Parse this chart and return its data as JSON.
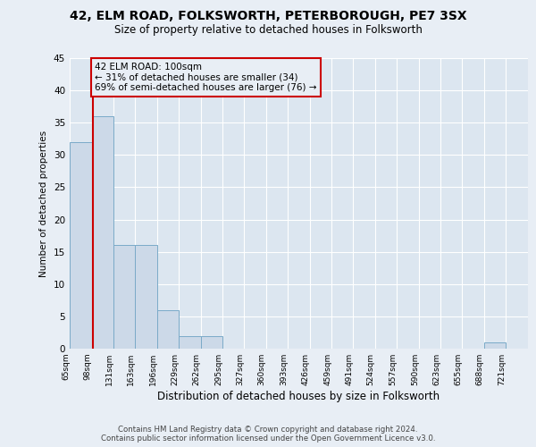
{
  "title1": "42, ELM ROAD, FOLKSWORTH, PETERBOROUGH, PE7 3SX",
  "title2": "Size of property relative to detached houses in Folksworth",
  "xlabel": "Distribution of detached houses by size in Folksworth",
  "ylabel": "Number of detached properties",
  "bin_labels": [
    "65sqm",
    "98sqm",
    "131sqm",
    "163sqm",
    "196sqm",
    "229sqm",
    "262sqm",
    "295sqm",
    "327sqm",
    "360sqm",
    "393sqm",
    "426sqm",
    "459sqm",
    "491sqm",
    "524sqm",
    "557sqm",
    "590sqm",
    "623sqm",
    "655sqm",
    "688sqm",
    "721sqm"
  ],
  "bin_edges": [
    65,
    98,
    131,
    163,
    196,
    229,
    262,
    295,
    327,
    360,
    393,
    426,
    459,
    491,
    524,
    557,
    590,
    623,
    655,
    688,
    721,
    754
  ],
  "bar_heights": [
    32,
    36,
    16,
    16,
    6,
    2,
    2,
    0,
    0,
    0,
    0,
    0,
    0,
    0,
    0,
    0,
    0,
    0,
    0,
    1,
    0
  ],
  "bar_color": "#ccd9e8",
  "bar_edge_color": "#7aaac8",
  "property_size": 100,
  "property_line_color": "#cc0000",
  "annotation_line1": "42 ELM ROAD: 100sqm",
  "annotation_line2": "← 31% of detached houses are smaller (34)",
  "annotation_line3": "69% of semi-detached houses are larger (76) →",
  "annotation_box_color": "#cc0000",
  "ylim": [
    0,
    45
  ],
  "yticks": [
    0,
    5,
    10,
    15,
    20,
    25,
    30,
    35,
    40,
    45
  ],
  "background_color": "#e8eef5",
  "plot_bg_color": "#dce6f0",
  "grid_color": "#ffffff",
  "footer1": "Contains HM Land Registry data © Crown copyright and database right 2024.",
  "footer2": "Contains public sector information licensed under the Open Government Licence v3.0."
}
